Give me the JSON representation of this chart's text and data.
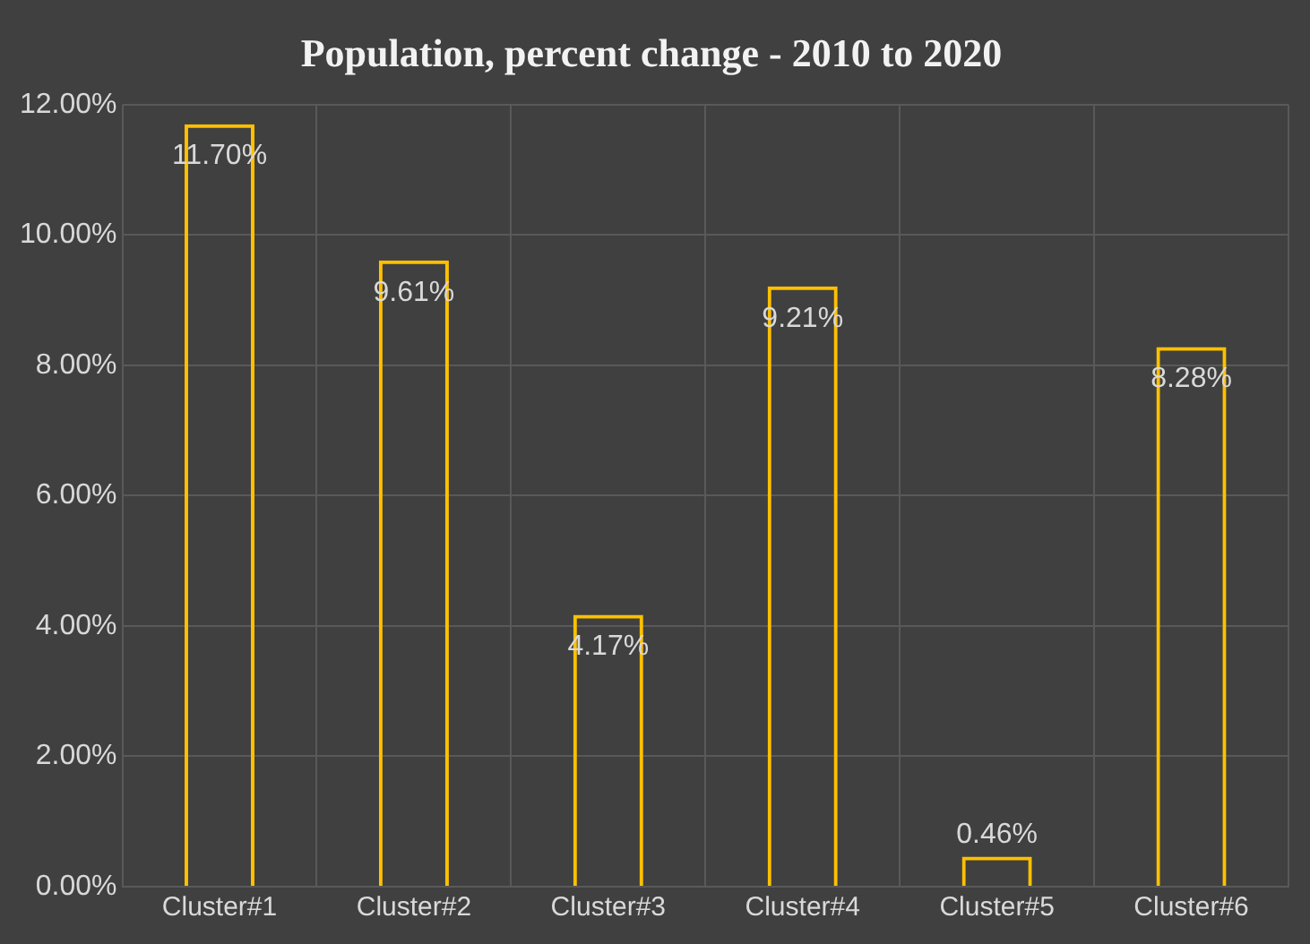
{
  "chart_data": {
    "type": "bar",
    "title": "Population, percent change - 2010 to 2020",
    "categories": [
      "Cluster#1",
      "Cluster#2",
      "Cluster#3",
      "Cluster#4",
      "Cluster#5",
      "Cluster#6"
    ],
    "values": [
      11.7,
      9.61,
      4.17,
      9.21,
      0.46,
      8.28
    ],
    "value_labels": [
      "11.70%",
      "9.61%",
      "4.17%",
      "9.21%",
      "0.46%",
      "8.28%"
    ],
    "color": "#ffc000",
    "ylim": [
      0,
      12
    ],
    "yticks": [
      {
        "value": 0,
        "label": "0.00%"
      },
      {
        "value": 2,
        "label": "2.00%"
      },
      {
        "value": 4,
        "label": "4.00%"
      },
      {
        "value": 6,
        "label": "6.00%"
      },
      {
        "value": 8,
        "label": "8.00%"
      },
      {
        "value": 10,
        "label": "10.00%"
      },
      {
        "value": 12,
        "label": "12.00%"
      }
    ],
    "grid": true,
    "legend": false
  }
}
